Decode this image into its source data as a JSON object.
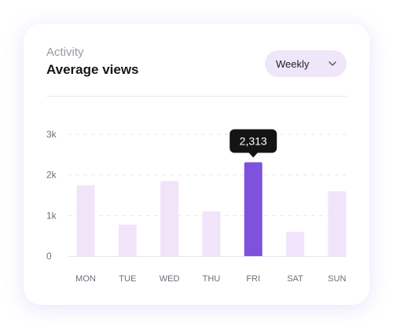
{
  "card": {
    "eyebrow": "Activity",
    "title": "Average views"
  },
  "period_select": {
    "selected": "Weekly",
    "icon": "chevron-down-icon"
  },
  "colors": {
    "bar": "#f1e4fa",
    "bar_highlight": "#7e52dc",
    "tooltip_bg": "#141414",
    "tooltip_text": "#ffffff",
    "axis_text": "#6f6d79",
    "grid": "#e7e6ec"
  },
  "chart_data": {
    "type": "bar",
    "title": "Average views",
    "categories": [
      "MON",
      "TUE",
      "WED",
      "THU",
      "FRI",
      "SAT",
      "SUN"
    ],
    "values": [
      1750,
      780,
      1850,
      1100,
      2313,
      600,
      1600
    ],
    "highlight": {
      "category": "FRI",
      "label": "2,313"
    },
    "y_ticks": [
      "0",
      "1k",
      "2k",
      "3k"
    ],
    "y_tick_values": [
      0,
      1000,
      2000,
      3000
    ],
    "ylim": [
      0,
      3000
    ],
    "grid": true,
    "xlabel": "",
    "ylabel": ""
  }
}
